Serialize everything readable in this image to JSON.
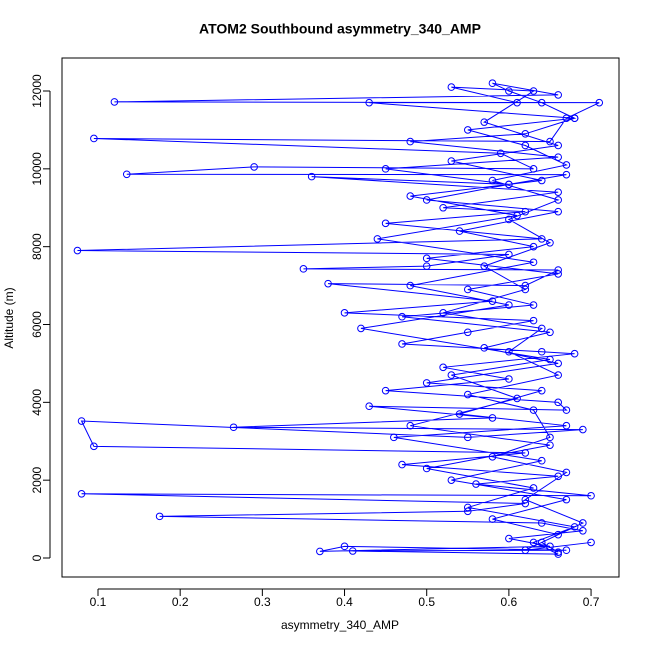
{
  "chart_data": {
    "type": "line",
    "title": "ATOM2 Southbound asymmetry_340_AMP",
    "x_label": "asymmetry_340_AMP",
    "y_label": "Altitude (m)",
    "color": "#0000ff",
    "markers": true,
    "x": [
      0.66,
      0.64,
      0.69,
      0.62,
      0.67,
      0.58,
      0.65,
      0.63,
      0.55,
      0.66,
      0.6,
      0.64,
      0.52,
      0.62,
      0.57,
      0.65,
      0.6,
      0.66,
      0.58,
      0.67,
      0.62,
      0.55,
      0.68,
      0.64,
      0.6,
      0.58,
      0.66,
      0.12,
      0.71,
      0.67,
      0.65,
      0.095,
      0.59,
      0.63,
      0.29,
      0.135,
      0.67,
      0.6,
      0.36,
      0.66,
      0.52,
      0.62,
      0.45,
      0.64,
      0.075,
      0.6,
      0.5,
      0.35,
      0.66,
      0.62,
      0.38,
      0.58,
      0.4,
      0.63,
      0.55,
      0.47,
      0.64,
      0.68,
      0.52,
      0.6,
      0.45,
      0.66,
      0.67,
      0.43,
      0.58,
      0.265,
      0.69,
      0.55,
      0.08,
      0.095,
      0.62,
      0.47,
      0.66,
      0.56,
      0.7,
      0.08,
      0.62,
      0.55,
      0.175,
      0.64,
      0.69,
      0.6,
      0.65,
      0.37,
      0.4,
      0.67,
      0.41,
      0.66,
      0.63,
      0.68,
      0.55,
      0.63,
      0.5,
      0.65,
      0.48,
      0.61,
      0.53,
      0.65,
      0.42,
      0.6,
      0.48,
      0.63,
      0.44,
      0.61,
      0.48,
      0.64,
      0.53,
      0.66,
      0.57,
      0.63,
      0.53,
      0.61,
      0.43,
      0.68,
      0.62,
      0.48,
      0.66,
      0.45,
      0.6,
      0.5,
      0.66,
      0.54,
      0.63,
      0.5,
      0.66,
      0.55,
      0.63,
      0.47,
      0.65,
      0.57,
      0.66,
      0.5,
      0.64,
      0.54,
      0.67,
      0.46,
      0.64,
      0.53,
      0.67,
      0.58,
      0.66,
      0.62,
      0.7
    ],
    "values": [
      150,
      400,
      900,
      1500,
      2200,
      2600,
      3100,
      3800,
      4200,
      4700,
      5300,
      5900,
      6300,
      6900,
      7500,
      8100,
      8700,
      9200,
      9700,
      10100,
      10600,
      11000,
      11300,
      11700,
      12000,
      12200,
      11900,
      11720,
      11700,
      11300,
      10700,
      10780,
      10400,
      10000,
      10050,
      9860,
      9850,
      9600,
      9800,
      9400,
      9000,
      8900,
      8600,
      8200,
      7900,
      7800,
      7500,
      7430,
      7400,
      7000,
      7050,
      6600,
      6300,
      6100,
      5800,
      5500,
      5300,
      5250,
      4900,
      4600,
      4300,
      4000,
      3800,
      3900,
      3600,
      3360,
      3300,
      3100,
      3520,
      2870,
      2700,
      2400,
      2100,
      1900,
      1600,
      1650,
      1400,
      1200,
      1070,
      900,
      700,
      500,
      300,
      170,
      300,
      200,
      180,
      100,
      400,
      800,
      1300,
      1800,
      2300,
      2900,
      3400,
      4100,
      4700,
      5100,
      5900,
      6500,
      7000,
      7600,
      8200,
      8800,
      9300,
      9700,
      10200,
      10600,
      11200,
      12000,
      12100,
      11700,
      11700,
      11300,
      10900,
      10700,
      10300,
      10000,
      9600,
      9200,
      8900,
      8400,
      8000,
      7700,
      7300,
      6900,
      6500,
      6200,
      5800,
      5400,
      5000,
      4500,
      4300,
      3700,
      3400,
      3100,
      2500,
      2000,
      1500,
      1000,
      600,
      200,
      400
    ],
    "xlim": [
      0.0562,
      0.734
    ],
    "ylim": [
      -488,
      12848
    ],
    "xticks": [
      0.1,
      0.2,
      0.3,
      0.4,
      0.5,
      0.6,
      0.7
    ],
    "yticks": [
      0,
      2000,
      4000,
      6000,
      8000,
      10000,
      12000
    ]
  }
}
